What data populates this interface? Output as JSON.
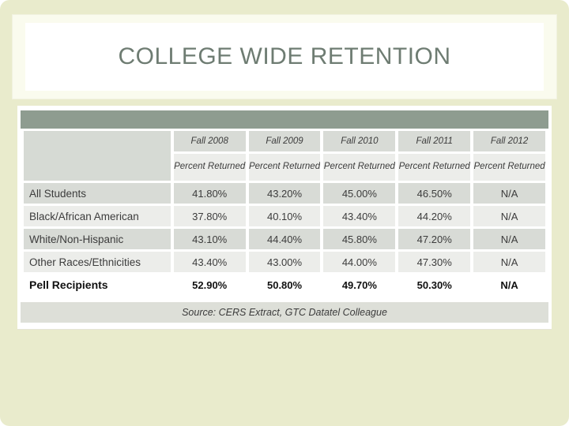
{
  "slide": {
    "title": "COLLEGE WIDE RETENTION",
    "colors": {
      "frame": "#e9ebcc",
      "title_text": "#6e7c72",
      "header_band": "#8e9c90",
      "row_gray": "#d8dbd6",
      "row_light": "#ecedea",
      "row_white": "#ffffff",
      "body_text": "#3c3c3c"
    }
  },
  "chart_data": {
    "type": "table",
    "title": "COLLEGE WIDE RETENTION",
    "columns": [
      "Fall 2008",
      "Fall 2009",
      "Fall 2010",
      "Fall 2011",
      "Fall 2012"
    ],
    "subheader": "Percent Returned",
    "rows": [
      {
        "label": "All Students",
        "values": [
          "41.80%",
          "43.20%",
          "45.00%",
          "46.50%",
          "N/A"
        ]
      },
      {
        "label": "Black/African American",
        "values": [
          "37.80%",
          "40.10%",
          "43.40%",
          "44.20%",
          "N/A"
        ]
      },
      {
        "label": "White/Non-Hispanic",
        "values": [
          "43.10%",
          "44.40%",
          "45.80%",
          "47.20%",
          "N/A"
        ]
      },
      {
        "label": "Other Races/Ethnicities",
        "values": [
          "43.40%",
          "43.00%",
          "44.00%",
          "47.30%",
          "N/A"
        ]
      },
      {
        "label": "Pell Recipients",
        "values": [
          "52.90%",
          "50.80%",
          "49.70%",
          "50.30%",
          "N/A"
        ]
      }
    ],
    "source": "Source: CERS Extract, GTC Datatel Colleague"
  }
}
